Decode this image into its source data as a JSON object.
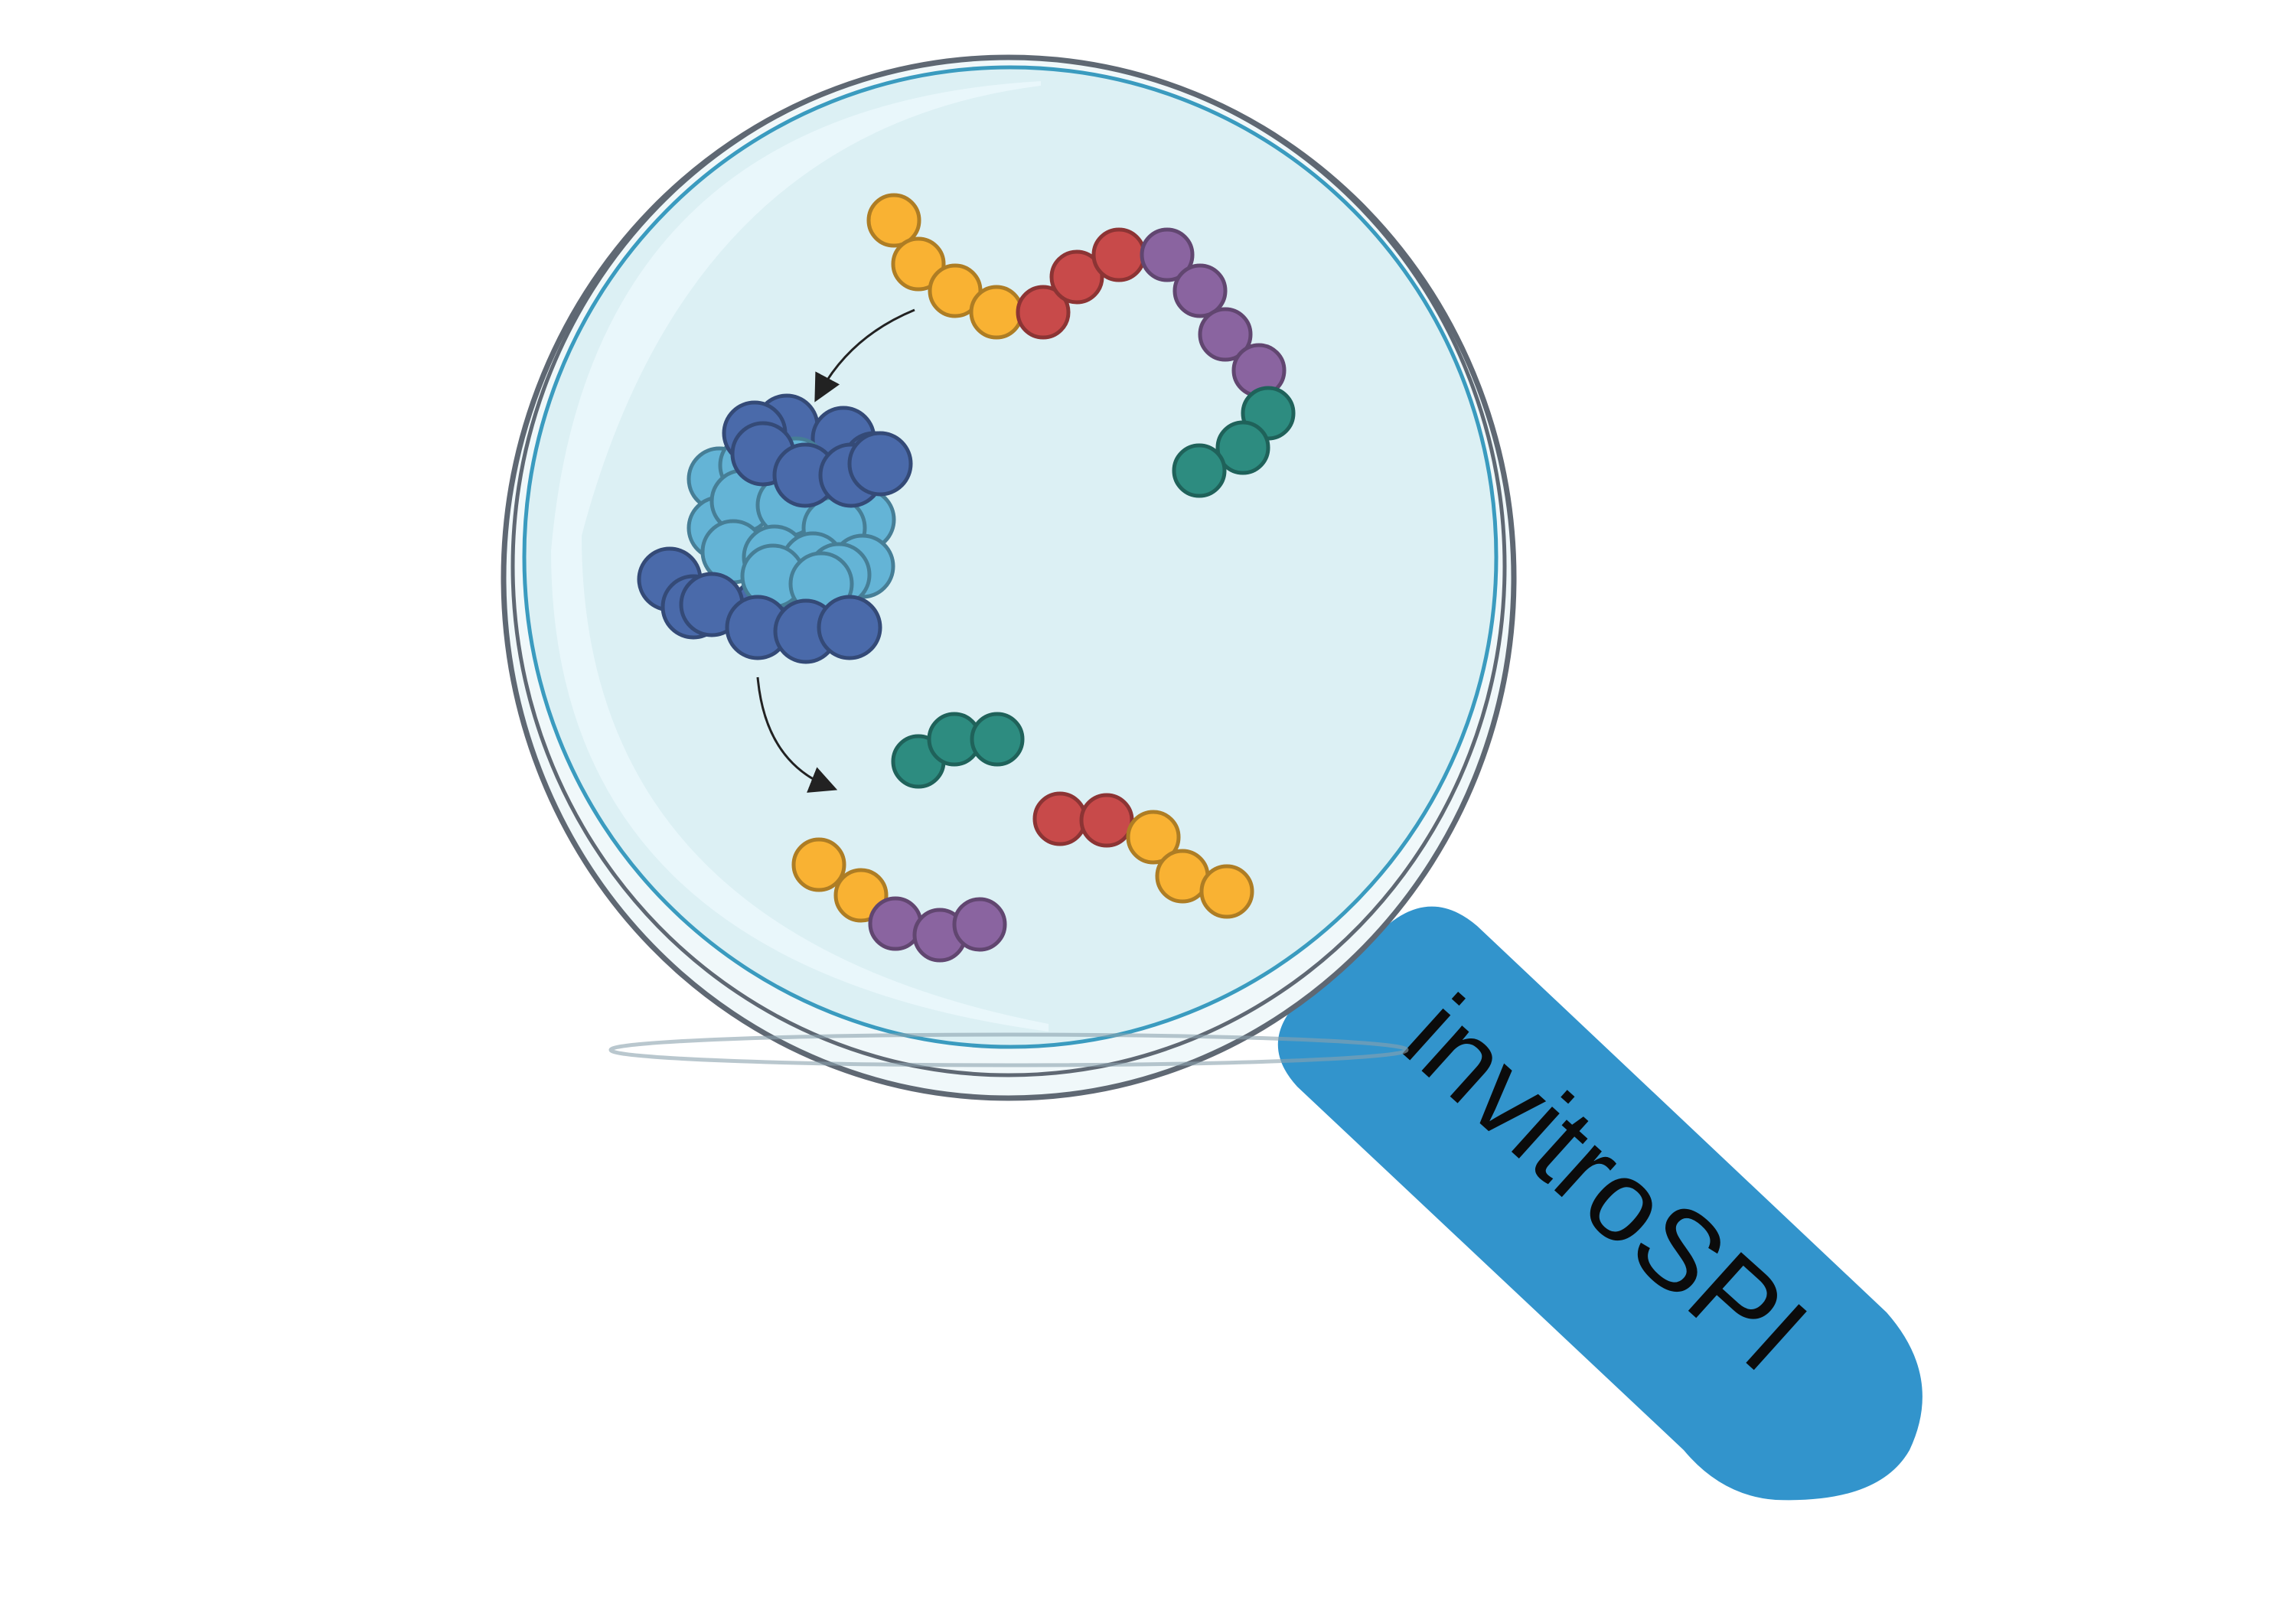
{
  "logo": {
    "name": "invitroSPI",
    "subject": "magnifying-glass-over-petri-dish"
  },
  "colors": {
    "background": "#ffffff",
    "handle": "#3294cc",
    "dish_fill": "#dcf0f4",
    "dish_rim": "#5f6873",
    "dish_inner_rim": "#3a9bbf",
    "yellow_residue": "#f9b233",
    "red_residue": "#c84a4a",
    "purple_residue": "#8a64a0",
    "teal_residue": "#2d8c80",
    "proteasome_outer": "#4a6aaa",
    "proteasome_inner": "#64b4d6",
    "arrow": "#222222"
  },
  "figure": {
    "substrate_chain": [
      "yellow",
      "yellow",
      "yellow",
      "yellow",
      "red",
      "red",
      "red",
      "purple",
      "purple",
      "purple",
      "purple",
      "teal",
      "teal",
      "teal"
    ],
    "product_fragments": [
      [
        "teal",
        "teal",
        "teal"
      ],
      [
        "red",
        "red",
        "yellow",
        "yellow",
        "yellow"
      ],
      [
        "yellow",
        "yellow",
        "purple",
        "purple",
        "purple"
      ]
    ],
    "icons": [
      "proteasome-icon",
      "arrow-icon"
    ]
  }
}
